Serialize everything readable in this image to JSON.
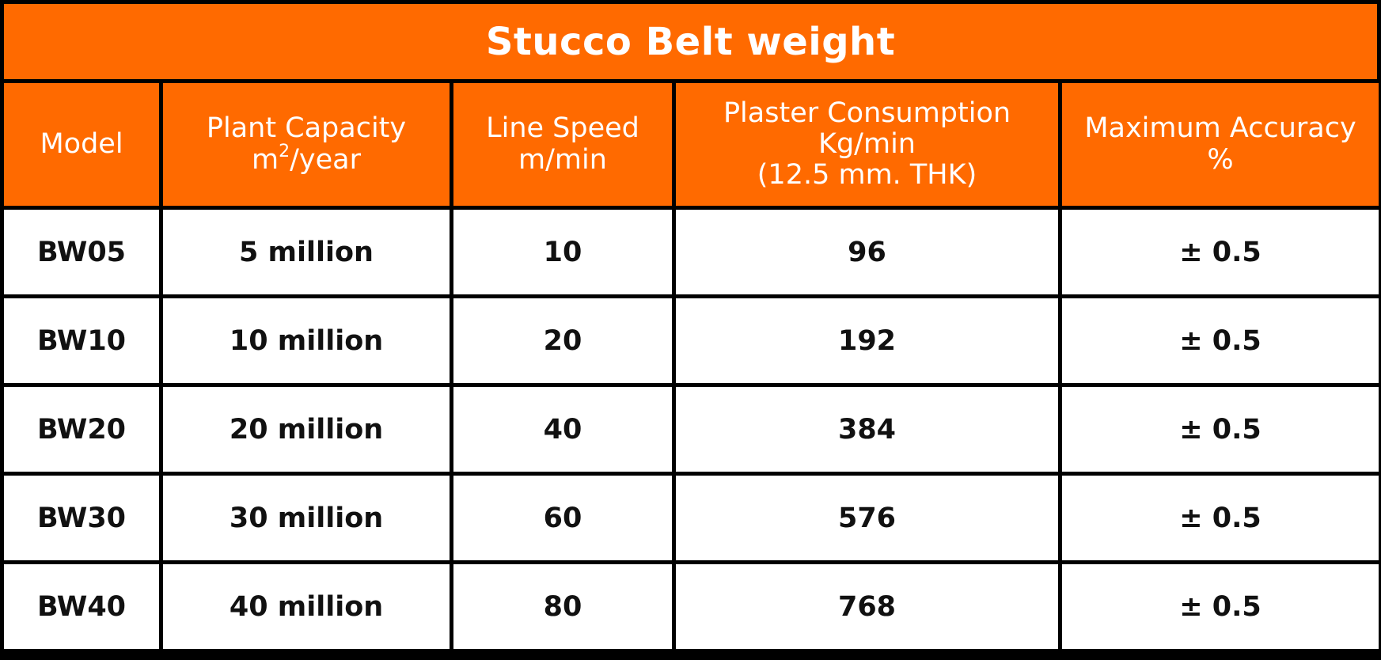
{
  "title": "Stucco Belt weight",
  "colors": {
    "header_bg": "#ff6a00",
    "header_text": "#ffffff",
    "border": "#000000",
    "cell_bg": "#ffffff",
    "cell_text": "#111111"
  },
  "headers": {
    "model": "Model",
    "capacity_line1": "Plant Capacity",
    "capacity_unit_prefix": "m",
    "capacity_unit_sup": "2",
    "capacity_unit_suffix": "/year",
    "speed_line1": "Line Speed",
    "speed_line2": "m/min",
    "plaster_line1": "Plaster Consumption",
    "plaster_line2": "Kg/min",
    "plaster_line3": "(12.5 mm. THK)",
    "accuracy_line1": "Maximum Accuracy",
    "accuracy_line2": "%"
  },
  "rows": [
    {
      "model": "BW05",
      "capacity": "5 million",
      "speed": "10",
      "plaster": "96",
      "accuracy": "± 0.5"
    },
    {
      "model": "BW10",
      "capacity": "10 million",
      "speed": "20",
      "plaster": "192",
      "accuracy": "± 0.5"
    },
    {
      "model": "BW20",
      "capacity": "20 million",
      "speed": "40",
      "plaster": "384",
      "accuracy": "± 0.5"
    },
    {
      "model": "BW30",
      "capacity": "30 million",
      "speed": "60",
      "plaster": "576",
      "accuracy": "± 0.5"
    },
    {
      "model": "BW40",
      "capacity": "40 million",
      "speed": "80",
      "plaster": "768",
      "accuracy": "± 0.5"
    }
  ]
}
